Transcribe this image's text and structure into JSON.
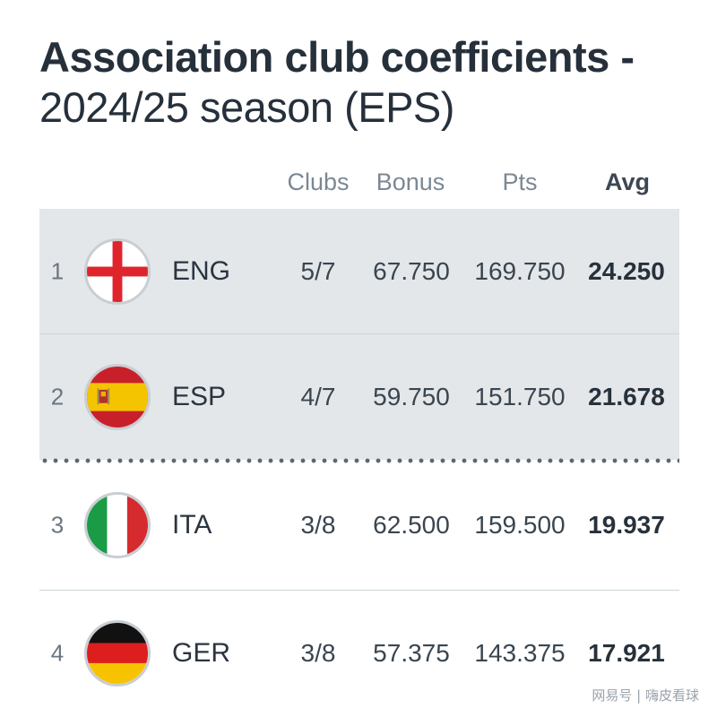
{
  "title": {
    "line1": "Association club coefficients -",
    "line2": "2024/25 season (EPS)"
  },
  "columns": {
    "clubs": "Clubs",
    "bonus": "Bonus",
    "pts": "Pts",
    "avg": "Avg"
  },
  "rows": [
    {
      "rank": "1",
      "code": "ENG",
      "flag_icon": "england-flag-icon",
      "clubs": "5/7",
      "bonus": "67.750",
      "pts": "169.750",
      "avg": "24.250"
    },
    {
      "rank": "2",
      "code": "ESP",
      "flag_icon": "spain-flag-icon",
      "clubs": "4/7",
      "bonus": "59.750",
      "pts": "151.750",
      "avg": "21.678"
    },
    {
      "rank": "3",
      "code": "ITA",
      "flag_icon": "italy-flag-icon",
      "clubs": "3/8",
      "bonus": "62.500",
      "pts": "159.500",
      "avg": "19.937"
    },
    {
      "rank": "4",
      "code": "GER",
      "flag_icon": "germany-flag-icon",
      "clubs": "3/8",
      "bonus": "57.375",
      "pts": "143.375",
      "avg": "17.921"
    }
  ],
  "colors": {
    "highlight_row": "#e3e7ea",
    "england_red": "#e0242d",
    "spain_red": "#c8202a",
    "spain_yellow": "#f5c400",
    "italy_green": "#1a9b46",
    "italy_red": "#d52b2f",
    "germany_black": "#111111",
    "germany_red": "#dd1e1e",
    "germany_gold": "#f7c300"
  },
  "watermark": "网易号 | 嗨皮看球"
}
